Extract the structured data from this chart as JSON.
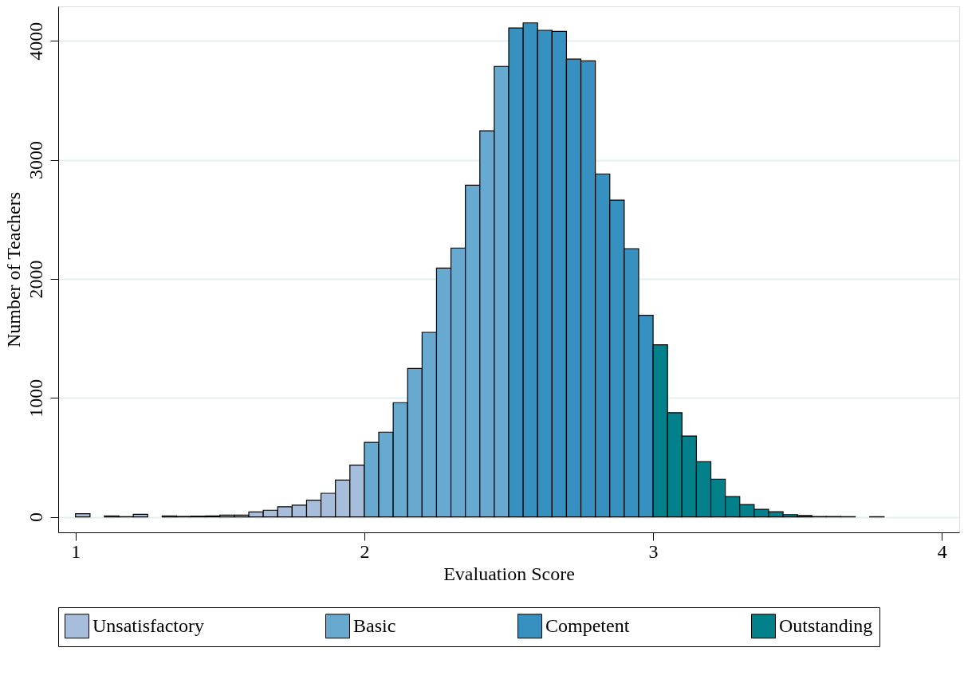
{
  "chart_data": {
    "type": "histogram",
    "xlabel": "Evaluation Score",
    "ylabel": "Number of Teachers",
    "bins": [
      1.0,
      1.05,
      1.1,
      1.15,
      1.2,
      1.25,
      1.3,
      1.35,
      1.4,
      1.45,
      1.5,
      1.55,
      1.6,
      1.65,
      1.7,
      1.75,
      1.8,
      1.85,
      1.9,
      1.95,
      2.0,
      2.05,
      2.1,
      2.15,
      2.2,
      2.25,
      2.3,
      2.35,
      2.4,
      2.45,
      2.5,
      2.55,
      2.6,
      2.65,
      2.7,
      2.75,
      2.8,
      2.85,
      2.9,
      2.95,
      3.0,
      3.05,
      3.1,
      3.15,
      3.2,
      3.25,
      3.3,
      3.35,
      3.4,
      3.45,
      3.5,
      3.55,
      3.6,
      3.65,
      3.7,
      3.75,
      3.8
    ],
    "series": [
      {
        "name": "Unsatisfactory",
        "color": "#a6bddb",
        "values": [
          26,
          null,
          9,
          2,
          22,
          null,
          9,
          4,
          6,
          8,
          15,
          15,
          42,
          56,
          85,
          98,
          140,
          198,
          310,
          435,
          null,
          null,
          null,
          null,
          null,
          null,
          null,
          null,
          null,
          null,
          null,
          null,
          null,
          null,
          null,
          null,
          null,
          null,
          null,
          null,
          null,
          null,
          null,
          null,
          null,
          null,
          null,
          null,
          null,
          null,
          null,
          null,
          null,
          null,
          null,
          null
        ]
      },
      {
        "name": "Basic",
        "color": "#67a9cf",
        "values": [
          null,
          null,
          null,
          null,
          null,
          null,
          null,
          null,
          null,
          null,
          null,
          null,
          null,
          null,
          null,
          null,
          null,
          null,
          null,
          null,
          626,
          712,
          960,
          1247,
          1551,
          2091,
          2259,
          2788,
          3245,
          3786,
          null,
          null,
          null,
          null,
          null,
          null,
          null,
          null,
          null,
          null,
          null,
          null,
          null,
          null,
          null,
          null,
          null,
          null,
          null,
          null,
          null,
          null,
          null,
          null,
          null,
          null
        ]
      },
      {
        "name": "Competent",
        "color": "#3690c0",
        "values": [
          null,
          null,
          null,
          null,
          null,
          null,
          null,
          null,
          null,
          null,
          null,
          null,
          null,
          null,
          null,
          null,
          null,
          null,
          null,
          null,
          null,
          null,
          null,
          null,
          null,
          null,
          null,
          null,
          null,
          null,
          4108,
          4151,
          4089,
          4080,
          3847,
          3832,
          2882,
          2662,
          2254,
          1694,
          null,
          null,
          null,
          null,
          null,
          null,
          null,
          null,
          null,
          null,
          null,
          null,
          null,
          null,
          null,
          null
        ]
      },
      {
        "name": "Outstanding",
        "color": "#02818a",
        "values": [
          null,
          null,
          null,
          null,
          null,
          null,
          null,
          null,
          null,
          null,
          null,
          null,
          null,
          null,
          null,
          null,
          null,
          null,
          null,
          null,
          null,
          null,
          null,
          null,
          null,
          null,
          null,
          null,
          null,
          null,
          null,
          null,
          null,
          null,
          null,
          null,
          null,
          null,
          null,
          null,
          1446,
          876,
          680,
          464,
          317,
          170,
          104,
          63,
          43,
          19,
          11,
          3,
          3,
          2,
          null,
          2
        ]
      }
    ],
    "xlim": [
      0.94,
      4.06
    ],
    "xticks": [
      1,
      2,
      3,
      4
    ],
    "ylim": [
      -130,
      4290
    ],
    "yticks": [
      0,
      1000,
      2000,
      3000,
      4000
    ],
    "grid": "y",
    "legend": "bottom"
  }
}
